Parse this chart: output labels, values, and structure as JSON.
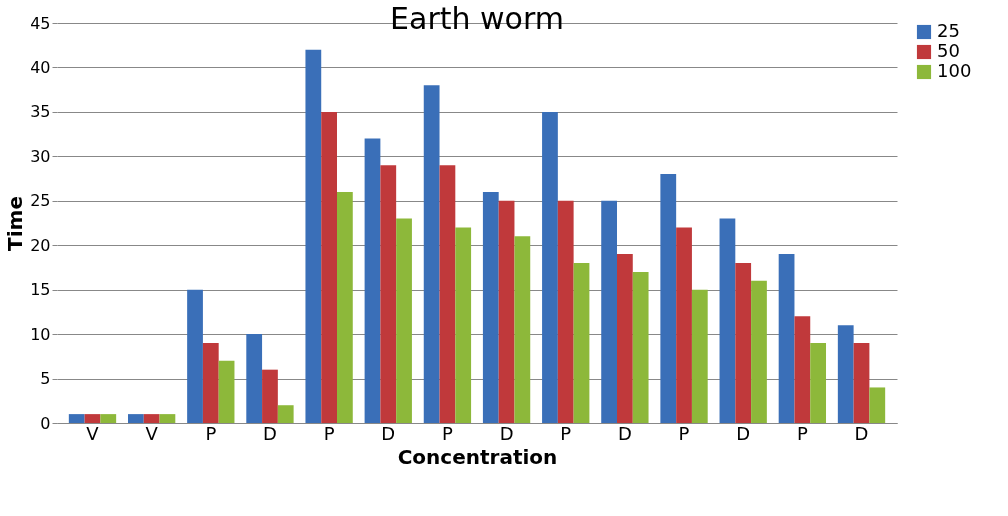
{
  "chart_data": {
    "type": "bar",
    "title": "Earth worm",
    "xlabel": "Concentration",
    "ylabel": "Time",
    "categories": [
      "V",
      "V",
      "P",
      "D",
      "P",
      "D",
      "P",
      "D",
      "P",
      "D",
      "P",
      "D",
      "P",
      "D"
    ],
    "series": [
      {
        "name": "25",
        "color": "#3a6fb8",
        "values": [
          1,
          1,
          15,
          10,
          42,
          32,
          38,
          26,
          35,
          25,
          28,
          23,
          19,
          11
        ]
      },
      {
        "name": "50",
        "color": "#c0393b",
        "values": [
          1,
          1,
          9,
          6,
          35,
          29,
          29,
          25,
          25,
          19,
          22,
          18,
          12,
          9
        ]
      },
      {
        "name": "100",
        "color": "#8db83a",
        "values": [
          1,
          1,
          7,
          2,
          26,
          23,
          22,
          21,
          18,
          17,
          15,
          16,
          9,
          4
        ]
      }
    ],
    "ylim": [
      0,
      45
    ],
    "yticks": [
      0,
      5,
      10,
      15,
      20,
      25,
      30,
      35,
      40,
      45
    ],
    "grid": "y",
    "legend": "right"
  }
}
